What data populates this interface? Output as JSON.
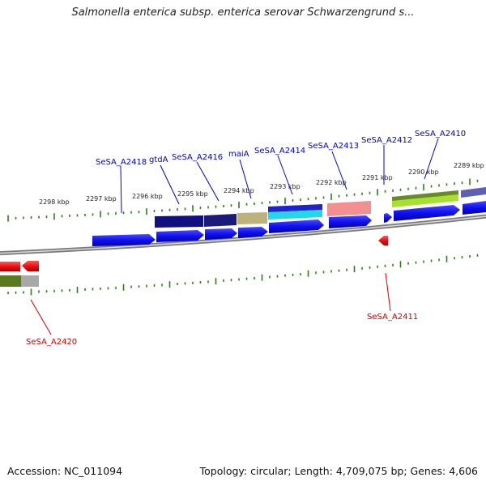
{
  "title": "Salmonella enterica subsp. enterica serovar Schwarzengrund s...",
  "footer": {
    "accession": "Accession: NC_011094",
    "summary": "Topology: circular; Length: 4,709,075 bp; Genes: 4,606"
  },
  "colors": {
    "forward_gene": "#0000ee",
    "reverse_gene": "#ee0000",
    "forward_label": "#0000cc",
    "reverse_label": "#cc0000",
    "tick": "#2e7d14",
    "backbone": "#8a8a8a"
  },
  "kbp_labels": [
    "2298 kbp",
    "2297 kbp",
    "2296 kbp",
    "2295 kbp",
    "2294 kbp",
    "2293 kbp",
    "2292 kbp",
    "2291 kbp",
    "2290 kbp",
    "2289 kbp"
  ],
  "forward_gene_labels": [
    "SeSA_A2418",
    "gtdA",
    "SeSA_A2416",
    "maiA",
    "SeSA_A2414",
    "SeSA_A2413",
    "SeSA_A2412",
    "SeSA_A2410"
  ],
  "reverse_gene_labels": [
    "SeSA_A2420",
    "SeSA_A2411"
  ]
}
